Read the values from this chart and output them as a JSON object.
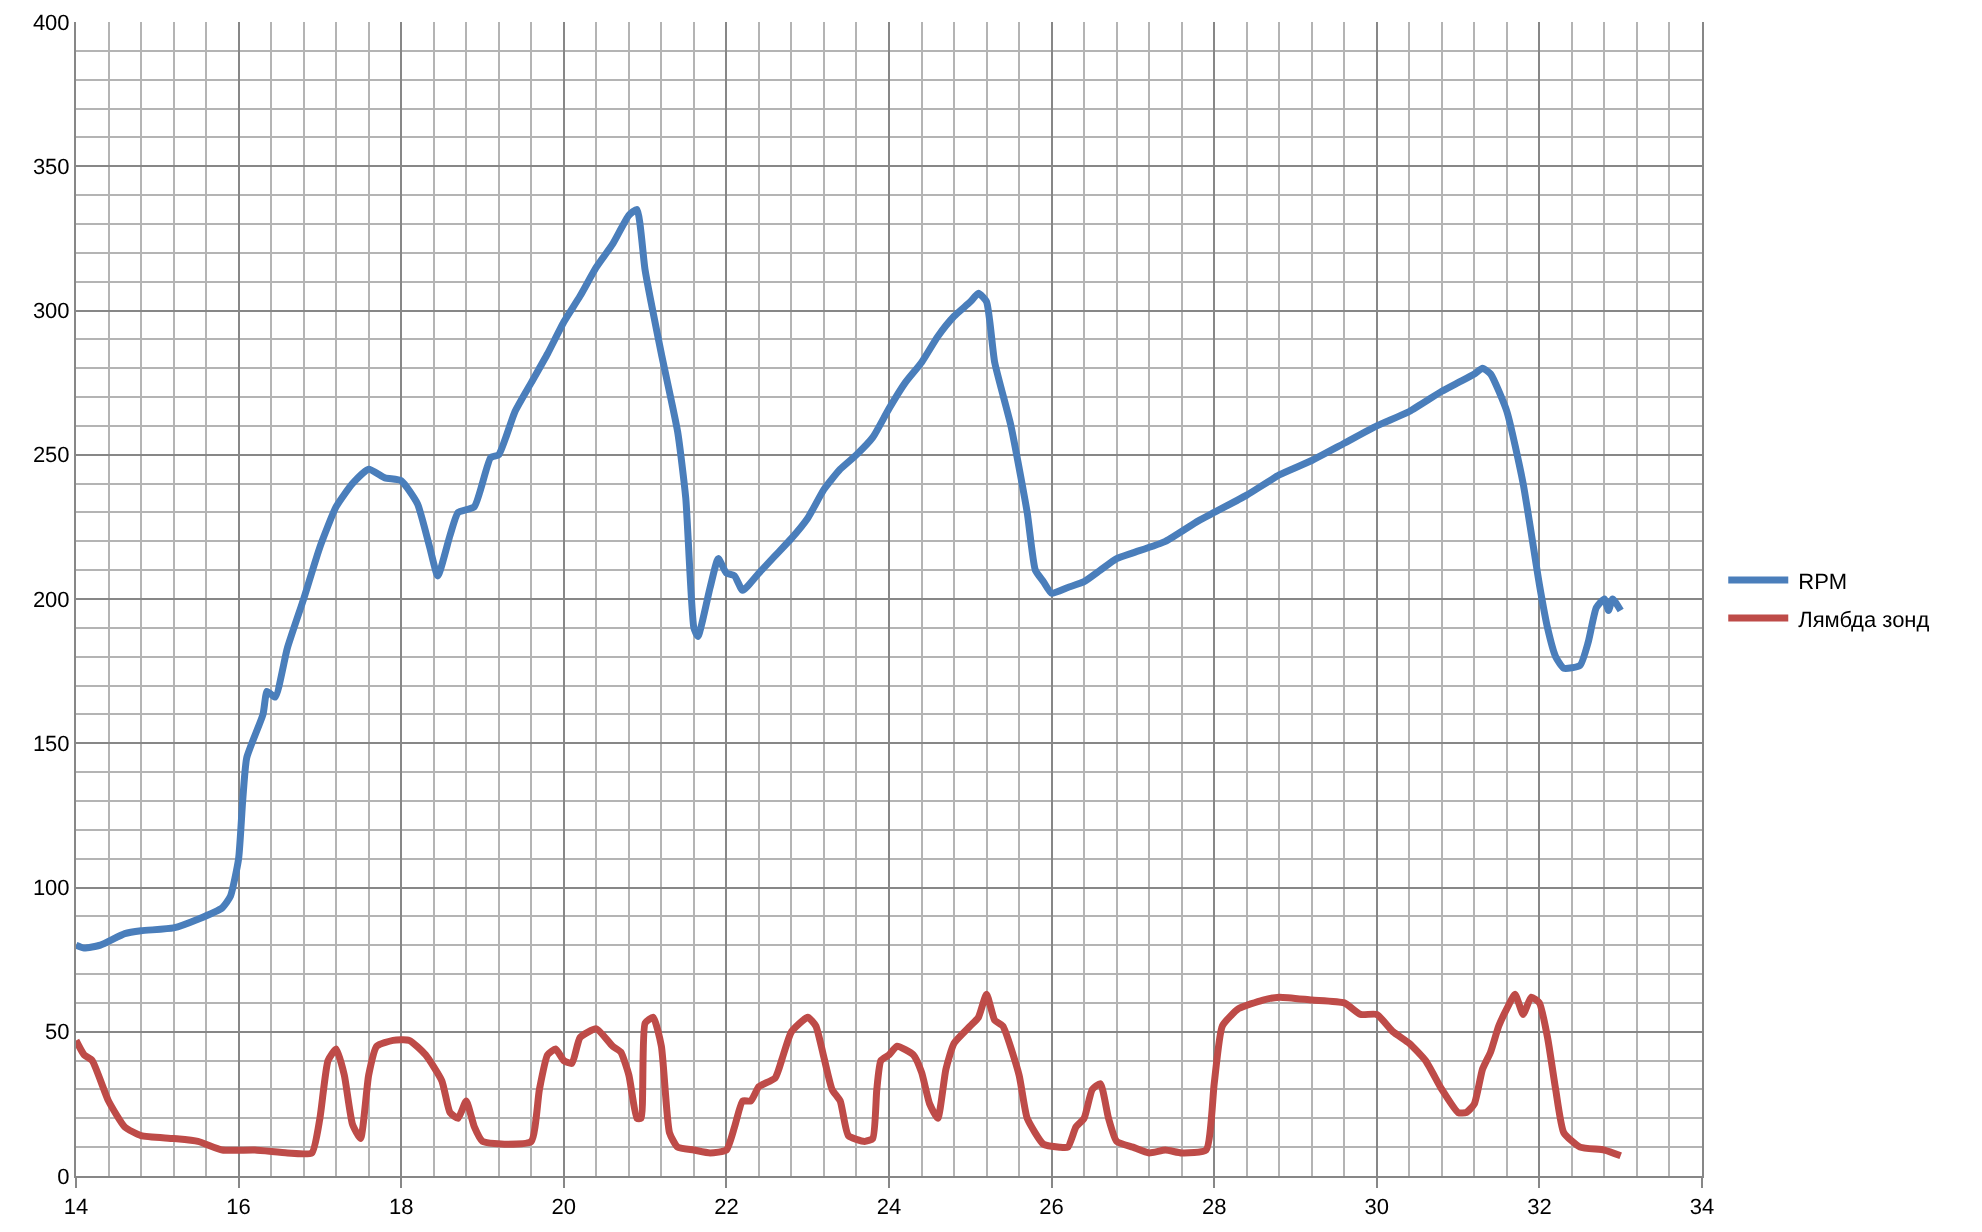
{
  "chart_data": {
    "type": "line",
    "xlim": [
      14,
      34
    ],
    "xticks": [
      14,
      16,
      18,
      20,
      22,
      24,
      26,
      28,
      30,
      32,
      34
    ],
    "ylim": [
      0,
      400
    ],
    "yticks": [
      0,
      50,
      100,
      150,
      200,
      250,
      300,
      350,
      400
    ],
    "grid": true,
    "legend": "right",
    "marker": "none",
    "line_style": "solid",
    "series": [
      {
        "name": "RPM",
        "color": "#4a7ebb",
        "x": [
          14.0,
          14.1,
          14.3,
          14.6,
          14.8,
          15.2,
          15.5,
          15.8,
          15.9,
          16.0,
          16.05,
          16.1,
          16.3,
          16.35,
          16.45,
          16.6,
          16.8,
          17.0,
          17.2,
          17.4,
          17.6,
          17.8,
          18.0,
          18.2,
          18.35,
          18.45,
          18.6,
          18.7,
          18.9,
          19.1,
          19.2,
          19.4,
          19.6,
          19.8,
          20.0,
          20.2,
          20.4,
          20.6,
          20.8,
          20.9,
          21.0,
          21.2,
          21.4,
          21.5,
          21.6,
          21.65,
          21.8,
          21.9,
          22.0,
          22.1,
          22.2,
          22.4,
          22.6,
          22.8,
          23.0,
          23.2,
          23.4,
          23.6,
          23.8,
          24.0,
          24.2,
          24.4,
          24.6,
          24.8,
          25.0,
          25.1,
          25.2,
          25.3,
          25.5,
          25.7,
          25.8,
          25.9,
          26.0,
          26.2,
          26.4,
          26.6,
          26.8,
          27.0,
          27.4,
          27.8,
          28.0,
          28.4,
          28.8,
          29.2,
          29.6,
          30.0,
          30.4,
          30.8,
          31.0,
          31.2,
          31.3,
          31.4,
          31.6,
          31.8,
          32.0,
          32.1,
          32.2,
          32.3,
          32.5,
          32.6,
          32.7,
          32.8,
          32.85,
          32.9,
          33.0
        ],
        "values": [
          80,
          79,
          80,
          84,
          85,
          86,
          89,
          93,
          97,
          110,
          130,
          145,
          160,
          168,
          166,
          183,
          200,
          218,
          232,
          240,
          245,
          242,
          241,
          233,
          218,
          208,
          222,
          230,
          232,
          249,
          250,
          265,
          275,
          285,
          296,
          305,
          315,
          323,
          333,
          335,
          314,
          285,
          258,
          235,
          190,
          187,
          204,
          214,
          209,
          208,
          203,
          209,
          215,
          221,
          228,
          238,
          245,
          250,
          256,
          266,
          275,
          282,
          291,
          298,
          303,
          306,
          303,
          282,
          260,
          230,
          210,
          206,
          202,
          204,
          206,
          210,
          214,
          216,
          220,
          227,
          230,
          236,
          243,
          248,
          254,
          260,
          265,
          272,
          275,
          278,
          280,
          278,
          265,
          240,
          205,
          190,
          180,
          176,
          177,
          185,
          197,
          200,
          196,
          200,
          196
        ]
      },
      {
        "name": "Лямбда зонд",
        "color": "#be4b48",
        "x": [
          14.0,
          14.1,
          14.2,
          14.4,
          14.6,
          14.8,
          15.2,
          15.5,
          15.8,
          16.2,
          16.6,
          16.9,
          17.0,
          17.1,
          17.2,
          17.3,
          17.4,
          17.5,
          17.6,
          17.7,
          17.9,
          18.1,
          18.3,
          18.5,
          18.6,
          18.7,
          18.8,
          18.9,
          19.0,
          19.3,
          19.6,
          19.7,
          19.8,
          19.9,
          20.0,
          20.1,
          20.2,
          20.4,
          20.6,
          20.7,
          20.8,
          20.9,
          20.95,
          21.0,
          21.1,
          21.2,
          21.3,
          21.4,
          21.6,
          21.8,
          22.0,
          22.1,
          22.2,
          22.3,
          22.4,
          22.6,
          22.7,
          22.8,
          23.0,
          23.1,
          23.2,
          23.3,
          23.4,
          23.5,
          23.7,
          23.8,
          23.85,
          23.9,
          24.0,
          24.1,
          24.3,
          24.4,
          24.5,
          24.6,
          24.7,
          24.8,
          25.0,
          25.1,
          25.2,
          25.3,
          25.4,
          25.6,
          25.7,
          25.9,
          26.1,
          26.2,
          26.3,
          26.4,
          26.5,
          26.6,
          26.7,
          26.8,
          27.0,
          27.2,
          27.4,
          27.6,
          27.9,
          28.0,
          28.1,
          28.3,
          28.6,
          28.8,
          29.2,
          29.6,
          29.8,
          30.0,
          30.2,
          30.4,
          30.6,
          30.8,
          31.0,
          31.1,
          31.2,
          31.3,
          31.4,
          31.5,
          31.6,
          31.7,
          31.8,
          31.9,
          32.0,
          32.1,
          32.2,
          32.3,
          32.5,
          32.8,
          33.0
        ],
        "values": [
          47,
          42,
          40,
          26,
          17,
          14,
          13,
          12,
          9,
          9,
          8,
          8,
          20,
          40,
          44,
          35,
          18,
          13,
          35,
          45,
          47,
          47,
          42,
          33,
          22,
          20,
          26,
          17,
          12,
          11,
          12,
          30,
          42,
          44,
          40,
          39,
          48,
          51,
          45,
          43,
          35,
          20,
          20,
          53,
          55,
          45,
          15,
          10,
          9,
          8,
          9,
          17,
          26,
          26,
          31,
          34,
          42,
          50,
          55,
          52,
          41,
          30,
          26,
          14,
          12,
          13,
          30,
          40,
          42,
          45,
          42,
          36,
          25,
          20,
          37,
          46,
          52,
          55,
          63,
          54,
          52,
          35,
          20,
          11,
          10,
          10,
          17,
          20,
          30,
          32,
          20,
          12,
          10,
          8,
          9,
          8,
          9,
          32,
          52,
          58,
          61,
          62,
          61,
          60,
          56,
          56,
          50,
          46,
          40,
          30,
          22,
          22,
          25,
          37,
          43,
          52,
          58,
          63,
          56,
          62,
          60,
          48,
          30,
          15,
          10,
          9,
          7
        ]
      }
    ]
  }
}
